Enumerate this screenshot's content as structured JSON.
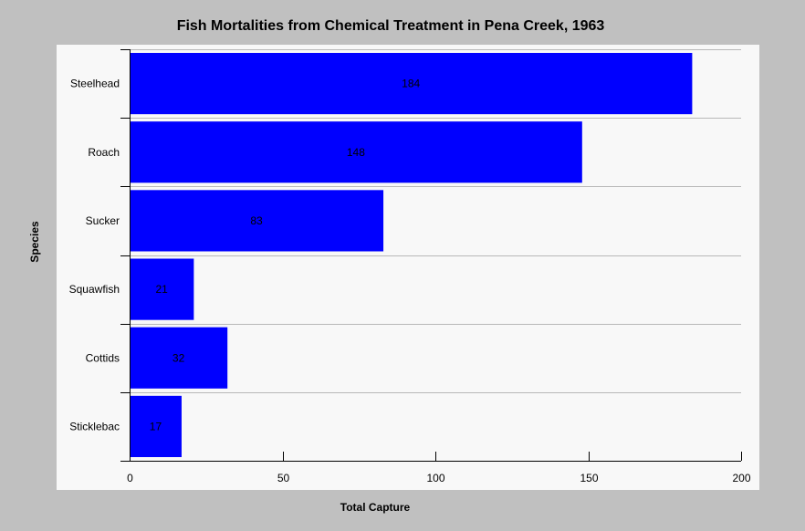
{
  "chart_data": {
    "type": "bar",
    "orientation": "horizontal",
    "title": "Fish Mortalities from Chemical Treatment in Pena Creek, 1963",
    "xlabel": "Total Capture",
    "ylabel": "Species",
    "categories": [
      "Steelhead",
      "Roach",
      "Sucker",
      "Squawfish",
      "Cottids",
      "Sticklebac"
    ],
    "values": [
      184,
      148,
      83,
      21,
      32,
      17
    ],
    "data_labels": [
      "184",
      "148",
      "83",
      "21",
      "32",
      "17"
    ],
    "xlim": [
      0,
      200
    ],
    "x_ticks": [
      "0",
      "50",
      "100",
      "150",
      "200"
    ],
    "grid": "horizontal",
    "legend": "none",
    "bar_color": "#0000ff",
    "plot_background": "#f8f8f8",
    "page_background": "#c0c0c0"
  }
}
